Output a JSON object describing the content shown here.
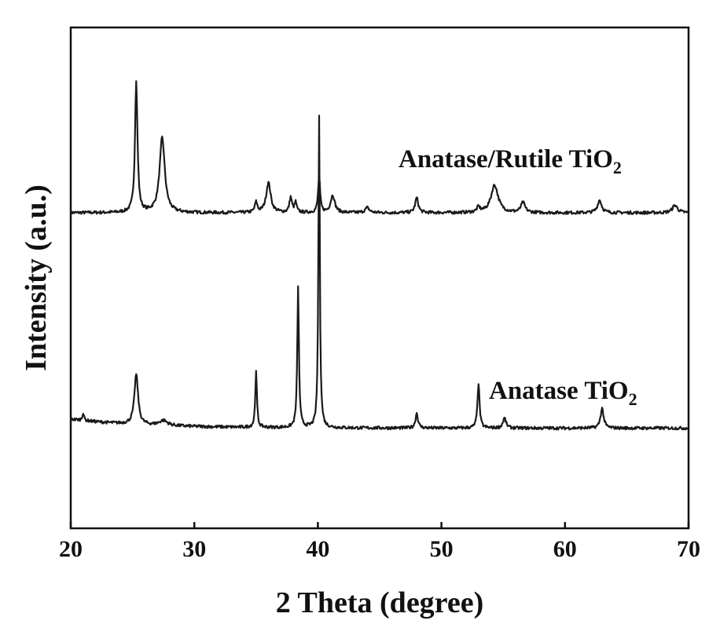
{
  "chart_data": {
    "type": "line",
    "xlabel": "2 Theta (degree)",
    "ylabel": "Intensity (a.u.)",
    "xlim": [
      20,
      70
    ],
    "x_ticks": [
      "20",
      "30",
      "40",
      "50",
      "60",
      "70"
    ],
    "y_ticks": [],
    "grid": false,
    "legend": "none",
    "series": [
      {
        "name_main": "Anatase/Rutile TiO",
        "name_sub": "2",
        "baseline": 0.63,
        "peaks": [
          {
            "x": 25.3,
            "height": 0.26,
            "width": 0.12
          },
          {
            "x": 27.4,
            "height": 0.15,
            "width": 0.25
          },
          {
            "x": 35.0,
            "height": 0.02,
            "width": 0.12
          },
          {
            "x": 36.0,
            "height": 0.06,
            "width": 0.22
          },
          {
            "x": 37.8,
            "height": 0.03,
            "width": 0.12
          },
          {
            "x": 38.2,
            "height": 0.02,
            "width": 0.1
          },
          {
            "x": 40.1,
            "height": 0.07,
            "width": 0.1
          },
          {
            "x": 41.2,
            "height": 0.035,
            "width": 0.2
          },
          {
            "x": 44.0,
            "height": 0.01,
            "width": 0.2
          },
          {
            "x": 48.0,
            "height": 0.03,
            "width": 0.15
          },
          {
            "x": 53.0,
            "height": 0.01,
            "width": 0.15
          },
          {
            "x": 54.3,
            "height": 0.055,
            "width": 0.35
          },
          {
            "x": 56.6,
            "height": 0.02,
            "width": 0.2
          },
          {
            "x": 62.8,
            "height": 0.025,
            "width": 0.2
          },
          {
            "x": 68.9,
            "height": 0.015,
            "width": 0.25
          }
        ]
      },
      {
        "name_main": "Anatase TiO",
        "name_sub": "2",
        "baseline": 0.2,
        "peaks": [
          {
            "x": 21.0,
            "height": 0.015,
            "width": 0.08
          },
          {
            "x": 25.3,
            "height": 0.1,
            "width": 0.18
          },
          {
            "x": 27.5,
            "height": 0.01,
            "width": 0.4
          },
          {
            "x": 35.0,
            "height": 0.11,
            "width": 0.08
          },
          {
            "x": 38.4,
            "height": 0.28,
            "width": 0.08
          },
          {
            "x": 40.1,
            "height": 0.62,
            "width": 0.07
          },
          {
            "x": 48.0,
            "height": 0.03,
            "width": 0.12
          },
          {
            "x": 53.0,
            "height": 0.09,
            "width": 0.1
          },
          {
            "x": 55.1,
            "height": 0.02,
            "width": 0.15
          },
          {
            "x": 63.0,
            "height": 0.04,
            "width": 0.15
          }
        ]
      }
    ]
  }
}
